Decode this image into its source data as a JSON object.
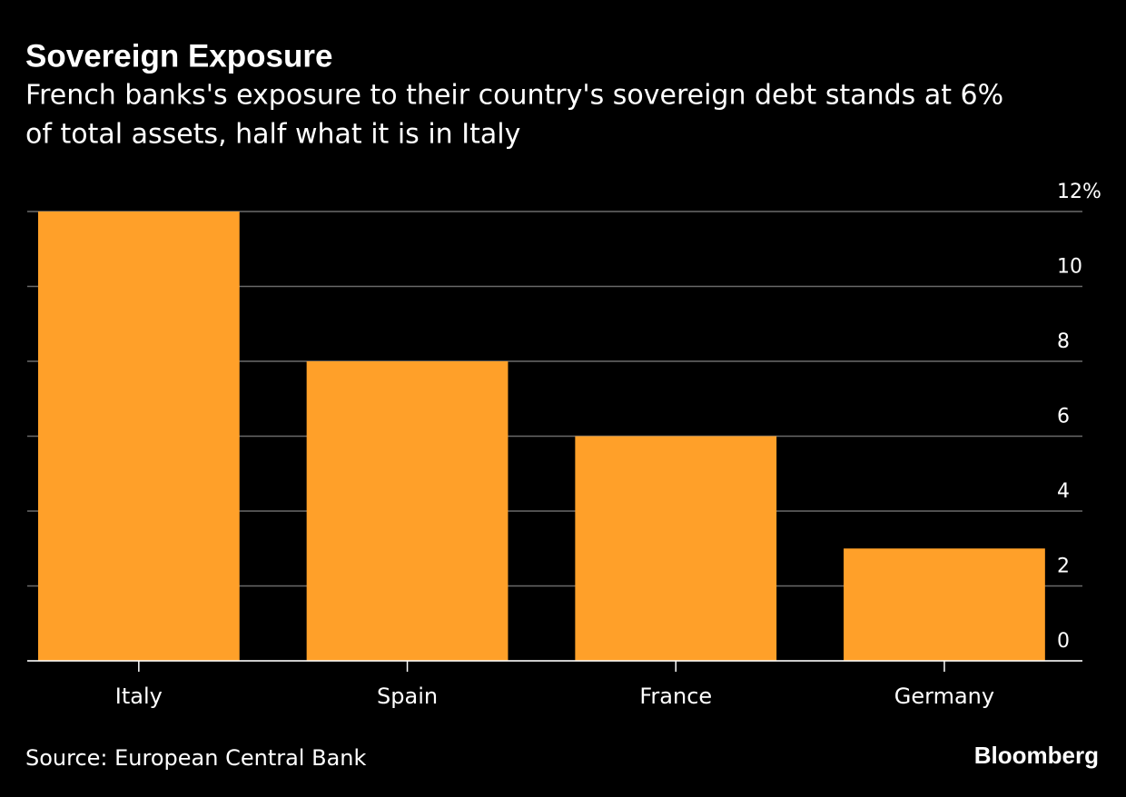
{
  "chart_data": {
    "type": "bar",
    "title": "Sovereign Exposure",
    "subtitle": [
      "French banks's exposure to their country's sovereign debt stands at 6%",
      "of total assets, half what it is in Italy"
    ],
    "categories": [
      "Italy",
      "Spain",
      "France",
      "Germany"
    ],
    "values": [
      12,
      8,
      6,
      3
    ],
    "color": "#ffa029",
    "ylim": [
      0,
      12
    ],
    "yticks": [
      0,
      2,
      4,
      6,
      8,
      10,
      {
        "value": 12,
        "label": "12%"
      }
    ],
    "grid": true,
    "source": "Source: European Central Bank",
    "brand": "Bloomberg"
  }
}
